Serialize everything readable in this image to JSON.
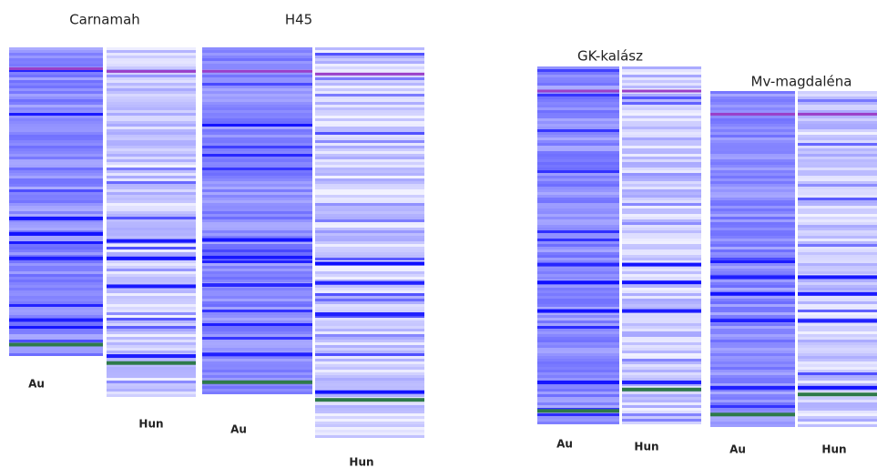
{
  "panels": [
    {
      "title": "Carnamah",
      "lanes": [
        {
          "label": "Au"
        },
        {
          "label": "Hun"
        }
      ]
    },
    {
      "title": "H45",
      "lanes": [
        {
          "label": "Au"
        },
        {
          "label": "Hun"
        }
      ]
    },
    {
      "title": "GK-kalász",
      "lanes": [
        {
          "label": "Au"
        },
        {
          "label": "Hun"
        }
      ]
    },
    {
      "title": "Mv-magdaléna",
      "lanes": [
        {
          "label": "Au"
        },
        {
          "label": "Hun"
        }
      ]
    }
  ]
}
